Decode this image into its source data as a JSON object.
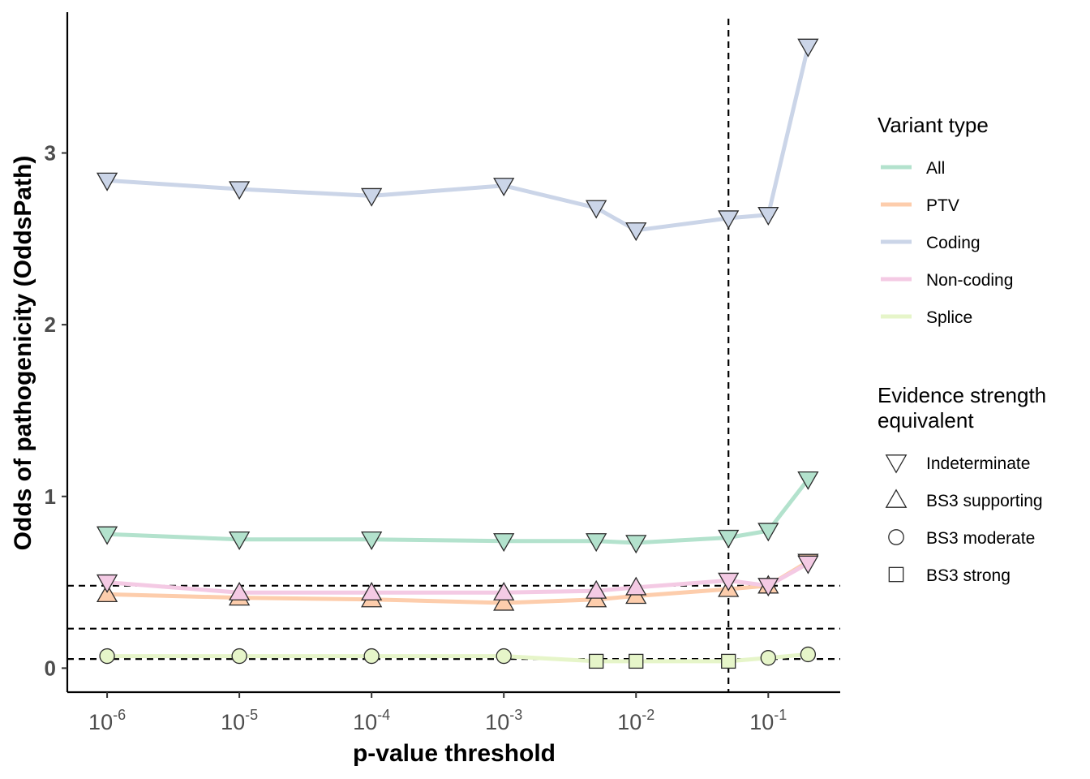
{
  "chart_data": {
    "type": "line",
    "xlabel": "p-value threshold",
    "ylabel": "Odds of pathogenicity (OddsPath)",
    "x_scale": "log10",
    "xlim": [
      5e-07,
      0.35
    ],
    "ylim": [
      -0.14,
      3.82
    ],
    "x_ticks": [
      {
        "value": 1e-06,
        "base": "10",
        "exp": "-6"
      },
      {
        "value": 1e-05,
        "base": "10",
        "exp": "-5"
      },
      {
        "value": 0.0001,
        "base": "10",
        "exp": "-4"
      },
      {
        "value": 0.001,
        "base": "10",
        "exp": "-3"
      },
      {
        "value": 0.01,
        "base": "10",
        "exp": "-2"
      },
      {
        "value": 0.1,
        "base": "10",
        "exp": "-1"
      }
    ],
    "y_ticks": [
      {
        "value": 0,
        "label": "0"
      },
      {
        "value": 1,
        "label": "1"
      },
      {
        "value": 2,
        "label": "2"
      },
      {
        "value": 3,
        "label": "3"
      }
    ],
    "hlines": [
      0.053,
      0.23,
      0.48
    ],
    "vline": 0.05,
    "grid": false,
    "legend_position": "right",
    "x": [
      1e-06,
      1e-05,
      0.0001,
      0.001,
      0.005,
      0.01,
      0.05,
      0.1,
      0.2
    ],
    "series": [
      {
        "name": "All",
        "color": "#b3e2cd",
        "values": [
          0.78,
          0.75,
          0.75,
          0.74,
          0.74,
          0.73,
          0.76,
          0.8,
          1.1
        ],
        "markers": [
          "indeterminate",
          "indeterminate",
          "indeterminate",
          "indeterminate",
          "indeterminate",
          "indeterminate",
          "indeterminate",
          "indeterminate",
          "indeterminate"
        ]
      },
      {
        "name": "PTV",
        "color": "#fdcdac",
        "values": [
          0.43,
          0.41,
          0.4,
          0.38,
          0.4,
          0.42,
          0.46,
          0.48,
          0.62
        ],
        "markers": [
          "bs3_supporting",
          "bs3_supporting",
          "bs3_supporting",
          "bs3_supporting",
          "bs3_supporting",
          "bs3_supporting",
          "bs3_supporting",
          "bs3_supporting",
          "indeterminate"
        ]
      },
      {
        "name": "Coding",
        "color": "#cbd5e8",
        "values": [
          2.84,
          2.79,
          2.75,
          2.81,
          2.68,
          2.55,
          2.62,
          2.64,
          3.62
        ],
        "markers": [
          "indeterminate",
          "indeterminate",
          "indeterminate",
          "indeterminate",
          "indeterminate",
          "indeterminate",
          "indeterminate",
          "indeterminate",
          "indeterminate"
        ]
      },
      {
        "name": "Non-coding",
        "color": "#f4cae4",
        "values": [
          0.5,
          0.44,
          0.44,
          0.44,
          0.45,
          0.47,
          0.51,
          0.48,
          0.61
        ],
        "markers": [
          "indeterminate",
          "bs3_supporting",
          "bs3_supporting",
          "bs3_supporting",
          "bs3_supporting",
          "bs3_supporting",
          "indeterminate",
          "indeterminate",
          "indeterminate"
        ]
      },
      {
        "name": "Splice",
        "color": "#e6f5c9",
        "values": [
          0.07,
          0.07,
          0.07,
          0.07,
          0.04,
          0.04,
          0.04,
          0.06,
          0.08
        ],
        "markers": [
          "bs3_moderate",
          "bs3_moderate",
          "bs3_moderate",
          "bs3_moderate",
          "bs3_strong",
          "bs3_strong",
          "bs3_strong",
          "bs3_moderate",
          "bs3_moderate"
        ]
      }
    ]
  },
  "legend": {
    "variant_title": "Variant type",
    "variant_items": [
      {
        "label": "All",
        "color": "#b3e2cd"
      },
      {
        "label": "PTV",
        "color": "#fdcdac"
      },
      {
        "label": "Coding",
        "color": "#cbd5e8"
      },
      {
        "label": "Non-coding",
        "color": "#f4cae4"
      },
      {
        "label": "Splice",
        "color": "#e6f5c9"
      }
    ],
    "evidence_title_line1": "Evidence strength",
    "evidence_title_line2": "equivalent",
    "evidence_items": [
      {
        "label": "Indeterminate",
        "shape": "indeterminate"
      },
      {
        "label": "BS3 supporting",
        "shape": "bs3_supporting"
      },
      {
        "label": "BS3 moderate",
        "shape": "bs3_moderate"
      },
      {
        "label": "BS3 strong",
        "shape": "bs3_strong"
      }
    ]
  }
}
